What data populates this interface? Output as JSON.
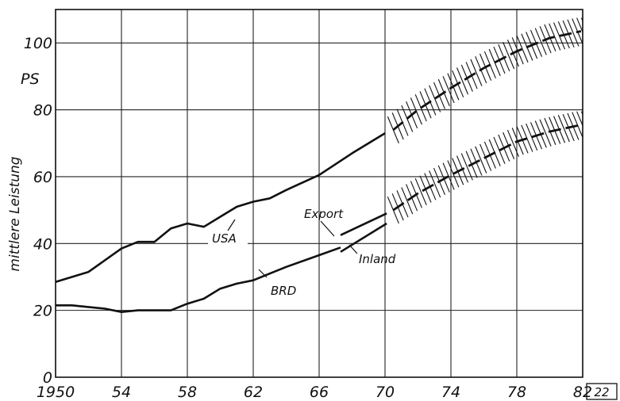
{
  "chart_data": {
    "type": "line",
    "title": "",
    "xlabel": "",
    "ylabel": "mittlere Leistung",
    "y_unit": "PS",
    "xlim": [
      1950,
      1982
    ],
    "ylim": [
      0,
      110
    ],
    "grid": true,
    "x_ticks": [
      {
        "value": 1950,
        "label": "1950"
      },
      {
        "value": 1954,
        "label": "54"
      },
      {
        "value": 1958,
        "label": "58"
      },
      {
        "value": 1962,
        "label": "62"
      },
      {
        "value": 1966,
        "label": "66"
      },
      {
        "value": 1970,
        "label": "70"
      },
      {
        "value": 1974,
        "label": "74"
      },
      {
        "value": 1978,
        "label": "78"
      },
      {
        "value": 1982,
        "label": "82"
      }
    ],
    "y_ticks": [
      0,
      20,
      40,
      60,
      80,
      100
    ],
    "figure_number": "22",
    "series": [
      {
        "name": "USA",
        "x": [
          1950,
          1952,
          1954,
          1955,
          1956,
          1957,
          1958,
          1959,
          1960,
          1961,
          1962,
          1963,
          1964,
          1966,
          1968,
          1970
        ],
        "y": [
          28.5,
          31.5,
          38.5,
          40.5,
          40.5,
          44.5,
          46,
          45,
          48,
          51,
          52.5,
          53.5,
          56,
          60.5,
          67,
          73
        ],
        "forecast": {
          "x": [
            1970.5,
            1972,
            1974,
            1976,
            1978,
            1980,
            1981.9
          ],
          "y": [
            74,
            80,
            86.5,
            92.5,
            97.5,
            101.5,
            103.5
          ],
          "band": 4
        }
      },
      {
        "name": "BRD",
        "x": [
          1950,
          1951,
          1952,
          1953,
          1954,
          1955,
          1956,
          1957,
          1958,
          1959,
          1960,
          1961,
          1962,
          1963,
          1964,
          1966,
          1967.3
        ],
        "y": [
          21.5,
          21.5,
          21,
          20.5,
          19.5,
          20,
          20,
          20,
          22,
          23.5,
          26.5,
          28,
          29,
          31,
          33,
          36.5,
          38.8
        ],
        "forecast": {
          "x": [
            1970.5,
            1972,
            1974,
            1976,
            1978,
            1980,
            1981.9
          ],
          "y": [
            50,
            55,
            60.5,
            65.5,
            70.5,
            73.5,
            75.5
          ],
          "band": 4
        }
      },
      {
        "name": "Export",
        "x": [
          1967.3,
          1970.1
        ],
        "y": [
          42.5,
          49
        ]
      },
      {
        "name": "Inland",
        "x": [
          1967.3,
          1970.1
        ],
        "y": [
          37.5,
          46
        ]
      }
    ],
    "annotations": [
      {
        "text": "USA",
        "series": "USA"
      },
      {
        "text": "BRD",
        "series": "BRD"
      },
      {
        "text": "Export",
        "series": "Export"
      },
      {
        "text": "Inland",
        "series": "Inland"
      }
    ]
  }
}
